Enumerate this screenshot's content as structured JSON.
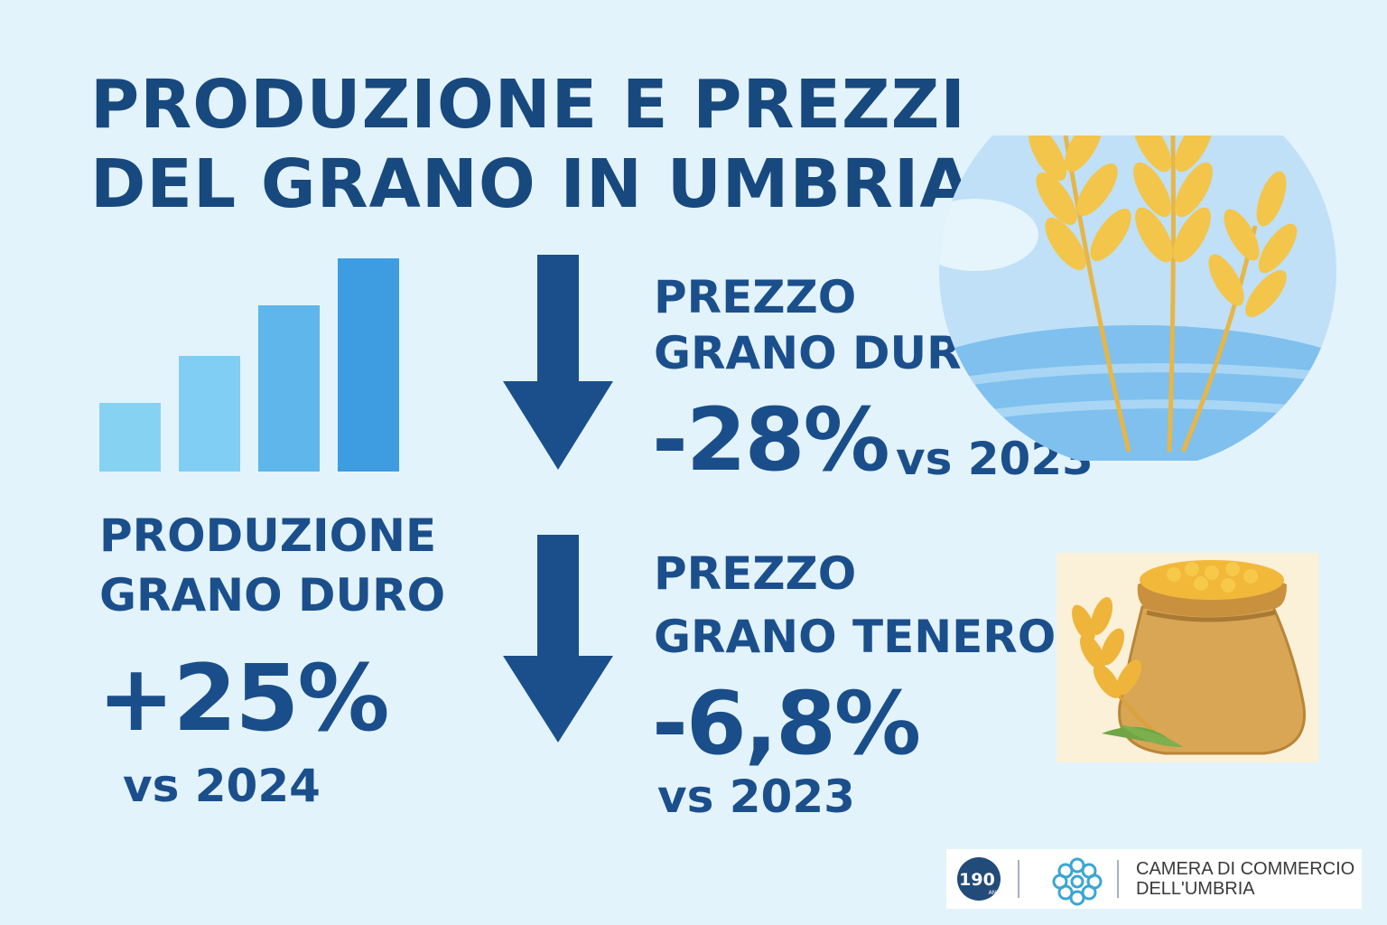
{
  "title": {
    "line1": "PRODUZIONE E PREZZI",
    "line2": "DEL GRANO IN UMBRIA"
  },
  "icons": {
    "bar_chart": "bar-chart-icon",
    "down_arrow": "arrow-down-icon",
    "wheat": "wheat-field-icon",
    "sack": "grain-sack-icon"
  },
  "stats": {
    "prezzo_duro": {
      "label_line1": "PREZZO",
      "label_line2": "GRANO DURO",
      "value": "-28%",
      "compare": "vs 2023"
    },
    "produzione_duro": {
      "label_line1": "PRODUZIONE",
      "label_line2": "GRANO DURO",
      "value": "+25%",
      "compare": "vs 2024"
    },
    "prezzo_tenero": {
      "label_line1": "PREZZO",
      "label_line2": "GRANO TENERO",
      "value": "-6,8%",
      "compare": "vs 2023"
    }
  },
  "logo": {
    "anniversary": "190",
    "anni": "ANNI",
    "line1": "CAMERA DI COMMERCIO",
    "line2": "DELL'UMBRIA"
  },
  "colors": {
    "background": "#e3f3fb",
    "title": "#17497f",
    "text": "#1b4f8c",
    "arrow": "#1b4f8c",
    "bars": [
      "#86d2f3",
      "#80cef3",
      "#5fb6ea",
      "#3d9de0"
    ],
    "wheat": "#f3c54a"
  }
}
